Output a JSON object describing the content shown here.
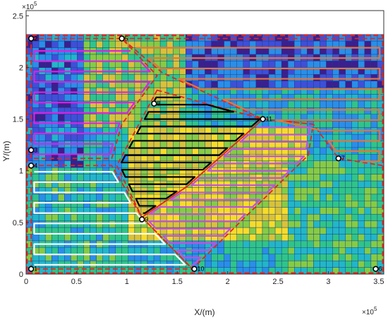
{
  "chart_data": {
    "type": "heatmap",
    "title": "",
    "xlabel": "X/(m)",
    "ylabel": "Y/(m)",
    "x_multiplier_label": "×10",
    "x_multiplier_exp": "5",
    "y_multiplier_label": "×10",
    "y_multiplier_exp": "5",
    "xlim": [
      0,
      3.55
    ],
    "ylim": [
      0,
      2.55
    ],
    "scale": 100000,
    "x_ticks": [
      0,
      0.5,
      1,
      1.5,
      2,
      2.5,
      3,
      3.5
    ],
    "x_tick_labels": [
      "0",
      "0.5",
      "1",
      "1.5",
      "2",
      "2.5",
      "3",
      "3.5"
    ],
    "y_ticks": [
      0,
      0.5,
      1,
      1.5,
      2,
      2.5
    ],
    "y_tick_labels": [
      "0",
      "0.5",
      "1",
      "1.5",
      "2",
      "2.5"
    ],
    "grid": {
      "x_min": 0,
      "x_max": 3.55,
      "y_min": 0,
      "y_max": 2.32,
      "nx": 56,
      "ny": 36
    },
    "colormap": [
      "#3b1f8f",
      "#3f4fd8",
      "#2a8ee8",
      "#22b6c9",
      "#2fc48a",
      "#86cb45",
      "#d8c23a",
      "#f6dc2a"
    ],
    "value_regions": [
      {
        "x": [
          0,
          0.55
        ],
        "y": [
          0,
          2.32
        ],
        "level": 1.5
      },
      {
        "x": [
          0.55,
          1.6
        ],
        "y": [
          1.4,
          2.32
        ],
        "level": 5
      },
      {
        "x": [
          1.6,
          3.55
        ],
        "y": [
          1.8,
          2.32
        ],
        "level": 1
      },
      {
        "x": [
          1.0,
          2.8
        ],
        "y": [
          0.3,
          1.4
        ],
        "level": 6
      },
      {
        "x": [
          2.6,
          3.55
        ],
        "y": [
          0,
          1.1
        ],
        "level": 4
      },
      {
        "x": [
          0,
          1.0
        ],
        "y": [
          0,
          1.0
        ],
        "level": 3.5
      }
    ],
    "boundary": [
      [
        0.01,
        0.01
      ],
      [
        3.54,
        0.01
      ],
      [
        3.54,
        2.31
      ],
      [
        0.01,
        2.31
      ]
    ],
    "regions": [
      {
        "name": "region-2",
        "polygon": [
          [
            0.05,
            2.28
          ],
          [
            0.95,
            2.28
          ],
          [
            1.3,
            1.92
          ],
          [
            0.95,
            1.45
          ],
          [
            0.85,
            1.12
          ],
          [
            0.05,
            1.12
          ]
        ],
        "path_color": "#e020e0"
      },
      {
        "name": "region-1",
        "polygon": [
          [
            0.95,
            2.28
          ],
          [
            3.54,
            2.28
          ],
          [
            3.54,
            1.05
          ],
          [
            3.1,
            1.12
          ],
          [
            2.85,
            1.45
          ],
          [
            2.35,
            1.5
          ],
          [
            1.35,
            1.95
          ]
        ],
        "path_color": "#e8743a"
      },
      {
        "name": "region-3",
        "polygon": [
          [
            0.05,
            1.05
          ],
          [
            0.85,
            1.05
          ],
          [
            1.15,
            0.55
          ],
          [
            1.65,
            0.05
          ],
          [
            0.05,
            0.05
          ]
        ],
        "path_color": "#ffffff"
      },
      {
        "name": "region-4",
        "polygon": [
          [
            1.3,
            1.78
          ],
          [
            2.35,
            1.5
          ],
          [
            1.6,
            0.85
          ],
          [
            1.15,
            0.55
          ],
          [
            0.9,
            1.05
          ]
        ],
        "path_color": "#000000"
      },
      {
        "name": "region-5",
        "polygon": [
          [
            2.35,
            1.5
          ],
          [
            2.85,
            1.45
          ],
          [
            2.8,
            1.15
          ],
          [
            1.65,
            0.05
          ],
          [
            1.15,
            0.55
          ],
          [
            1.6,
            0.85
          ]
        ],
        "path_color": "#c050e0"
      }
    ],
    "waypoints": [
      {
        "label": "1",
        "x": 0.05,
        "y": 0.05
      },
      {
        "label": "2",
        "x": 0.05,
        "y": 2.28
      },
      {
        "label": "3",
        "x": 0.05,
        "y": 1.2
      },
      {
        "label": "4",
        "x": 0.05,
        "y": 1.05
      },
      {
        "label": "5",
        "x": 0.95,
        "y": 2.28
      },
      {
        "label": "6",
        "x": 3.47,
        "y": 0.05
      },
      {
        "label": "7",
        "x": 3.1,
        "y": 1.12
      },
      {
        "label": "8",
        "x": 1.27,
        "y": 1.65
      },
      {
        "label": "9",
        "x": 1.15,
        "y": 0.53
      },
      {
        "label": "10",
        "x": 1.67,
        "y": 0.05
      },
      {
        "label": "11",
        "x": 2.35,
        "y": 1.5
      }
    ],
    "legend": "none"
  }
}
